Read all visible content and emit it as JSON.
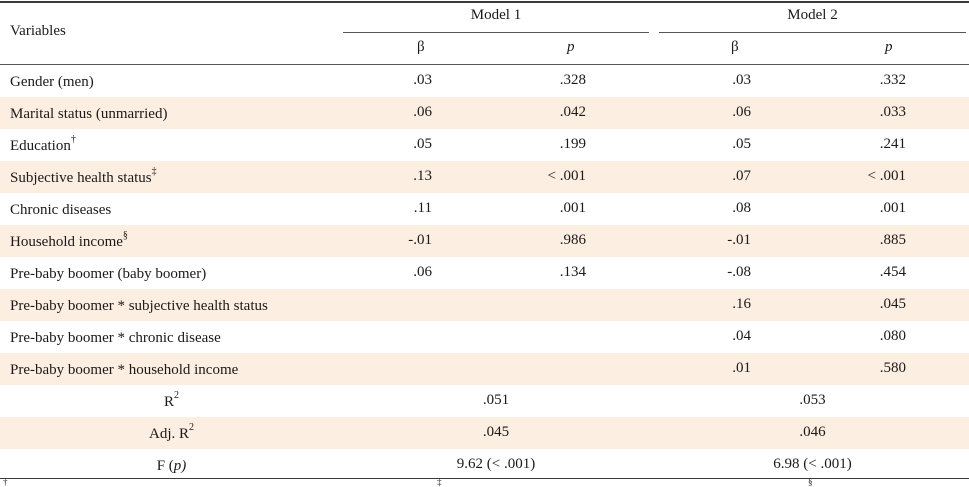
{
  "header": {
    "variables": "Variables",
    "model1": "Model 1",
    "model2": "Model 2",
    "beta": "β",
    "p": "p"
  },
  "rows": [
    {
      "label": "Gender (men)",
      "sup": "",
      "m1_beta": ".03",
      "m1_p": ".328",
      "m2_beta": ".03",
      "m2_p": ".332"
    },
    {
      "label": "Marital status (unmarried)",
      "sup": "",
      "m1_beta": ".06",
      "m1_p": ".042",
      "m2_beta": ".06",
      "m2_p": ".033"
    },
    {
      "label": "Education",
      "sup": "†",
      "m1_beta": ".05",
      "m1_p": ".199",
      "m2_beta": ".05",
      "m2_p": ".241"
    },
    {
      "label": "Subjective health status",
      "sup": "‡",
      "m1_beta": ".13",
      "m1_p": "< .001",
      "m2_beta": ".07",
      "m2_p": "< .001"
    },
    {
      "label": "Chronic diseases",
      "sup": "",
      "m1_beta": ".11",
      "m1_p": ".001",
      "m2_beta": ".08",
      "m2_p": ".001"
    },
    {
      "label": "Household income",
      "sup": "§",
      "m1_beta": "-.01",
      "m1_p": ".986",
      "m2_beta": "-.01",
      "m2_p": ".885"
    },
    {
      "label": "Pre-baby boomer (baby boomer)",
      "sup": "",
      "m1_beta": ".06",
      "m1_p": ".134",
      "m2_beta": "-.08",
      "m2_p": ".454"
    },
    {
      "label": "Pre-baby boomer * subjective health status",
      "sup": "",
      "m1_beta": "",
      "m1_p": "",
      "m2_beta": ".16",
      "m2_p": ".045"
    },
    {
      "label": "Pre-baby boomer * chronic disease",
      "sup": "",
      "m1_beta": "",
      "m1_p": "",
      "m2_beta": ".04",
      "m2_p": ".080"
    },
    {
      "label": "Pre-baby boomer * household income",
      "sup": "",
      "m1_beta": "",
      "m1_p": "",
      "m2_beta": ".01",
      "m2_p": ".580"
    }
  ],
  "stats": [
    {
      "label": "R",
      "sup": "2",
      "suffix": "",
      "m1": ".051",
      "m2": ".053"
    },
    {
      "label": "Adj.  R",
      "sup": "2",
      "suffix": "",
      "m1": ".045",
      "m2": ".046"
    },
    {
      "label": "F  (",
      "sup": "",
      "suffix": "p)",
      "m1": "9.62 (< .001)",
      "m2": "6.98 (< .001)"
    }
  ],
  "footnote_marks": [
    "†",
    "‡",
    "§"
  ]
}
